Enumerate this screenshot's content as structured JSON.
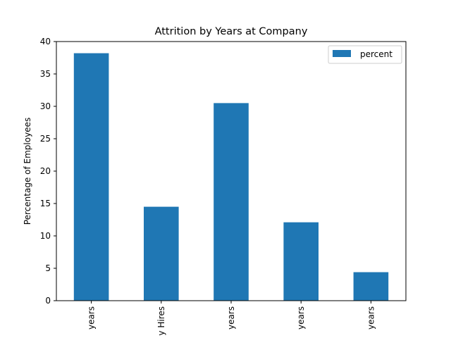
{
  "chart_data": {
    "type": "bar",
    "title": "Attrition by Years at Company",
    "xlabel": "",
    "ylabel": "Percentage of Employees",
    "categories": [
      "years",
      "y Hires",
      "years",
      "years",
      "years"
    ],
    "series": [
      {
        "name": "percent",
        "values": [
          38.2,
          14.5,
          30.5,
          12.1,
          4.4
        ]
      }
    ],
    "ylim": [
      0,
      40
    ],
    "yticks": [
      0,
      5,
      10,
      15,
      20,
      25,
      30,
      35,
      40
    ],
    "grid": false,
    "legend_position": "top-right",
    "bar_color": "#1f77b4"
  }
}
